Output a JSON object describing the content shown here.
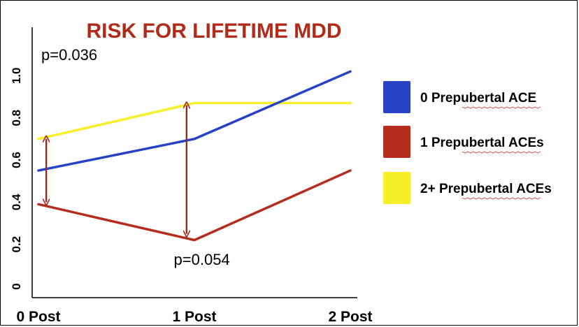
{
  "chart_data": {
    "type": "line",
    "title": "RISK FOR LIFETIME MDD",
    "title_color": "#b22a18",
    "categories": [
      "0 Post",
      "1 Post",
      "2 Post"
    ],
    "y_ticks": [
      "0",
      "0.2",
      "0.4",
      "0.6",
      "0.8",
      "1.0"
    ],
    "ylim": [
      0,
      1.2
    ],
    "series": [
      {
        "name": "0 Prepubertal ACE",
        "color": "#2543c4",
        "values": [
          0.55,
          0.7,
          1.02
        ]
      },
      {
        "name": "1 Prepubertal ACEs",
        "color": "#b52d1e",
        "values": [
          0.39,
          0.22,
          0.55
        ]
      },
      {
        "name": "2+ Prepubertal ACEs",
        "color": "#f7ef2a",
        "values": [
          0.7,
          0.87,
          0.87
        ]
      }
    ],
    "annotations": [
      {
        "text": "p=0.036",
        "x": 0,
        "y": 1.1
      },
      {
        "text": "p=0.054",
        "x": 0.85,
        "y": 0.13
      }
    ],
    "arrows": [
      {
        "x": 0.05,
        "y_from": 0.4,
        "y_to": 0.7,
        "color": "#9c2a1b"
      },
      {
        "x": 0.95,
        "y_from": 0.25,
        "y_to": 0.86,
        "color": "#9c2a1b"
      }
    ],
    "grid": false,
    "legend_position": "right"
  }
}
